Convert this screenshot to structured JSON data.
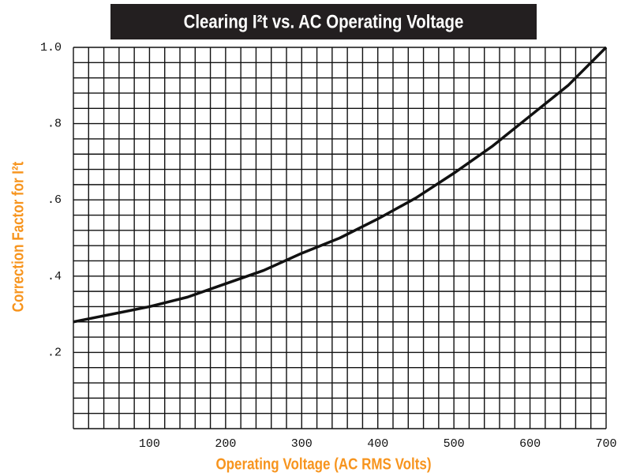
{
  "chart_data": {
    "type": "line",
    "title": "Clearing I²t vs. AC Operating Voltage",
    "x_label": "Operating Voltage (AC RMS Volts)",
    "y_label": "Correction Factor for I²t",
    "x": [
      0,
      50,
      100,
      150,
      200,
      250,
      300,
      350,
      400,
      450,
      500,
      550,
      600,
      650,
      700
    ],
    "series": [
      {
        "name": "Correction Factor",
        "color": "#111111",
        "values": [
          0.28,
          0.3,
          0.32,
          0.345,
          0.38,
          0.415,
          0.46,
          0.5,
          0.55,
          0.605,
          0.67,
          0.74,
          0.82,
          0.9,
          1.0
        ]
      }
    ],
    "xlim": [
      0,
      700
    ],
    "ylim": [
      0,
      1
    ],
    "xticks": [
      100,
      200,
      300,
      400,
      500,
      600,
      700
    ],
    "yticks": [
      {
        "value": 0.2,
        "label": ".2"
      },
      {
        "value": 0.4,
        "label": ".4"
      },
      {
        "value": 0.6,
        "label": ".6"
      },
      {
        "value": 0.8,
        "label": ".8"
      },
      {
        "value": 1,
        "label": "1.0"
      }
    ],
    "xgrid": [
      0,
      20,
      40,
      60,
      80,
      100,
      120,
      140,
      160,
      180,
      200,
      220,
      240,
      260,
      280,
      300,
      320,
      340,
      360,
      380,
      400,
      420,
      440,
      460,
      480,
      500,
      520,
      540,
      560,
      580,
      600,
      620,
      640,
      660,
      680,
      700
    ],
    "ygrid": [
      0,
      0.04,
      0.08,
      0.12,
      0.16,
      0.2,
      0.24,
      0.28,
      0.32,
      0.36,
      0.4,
      0.44,
      0.48,
      0.52,
      0.56,
      0.6,
      0.64,
      0.68,
      0.72,
      0.76,
      0.8,
      0.84,
      0.88,
      0.92,
      0.96,
      1
    ],
    "grid": true,
    "label_color": "#f7941d"
  }
}
